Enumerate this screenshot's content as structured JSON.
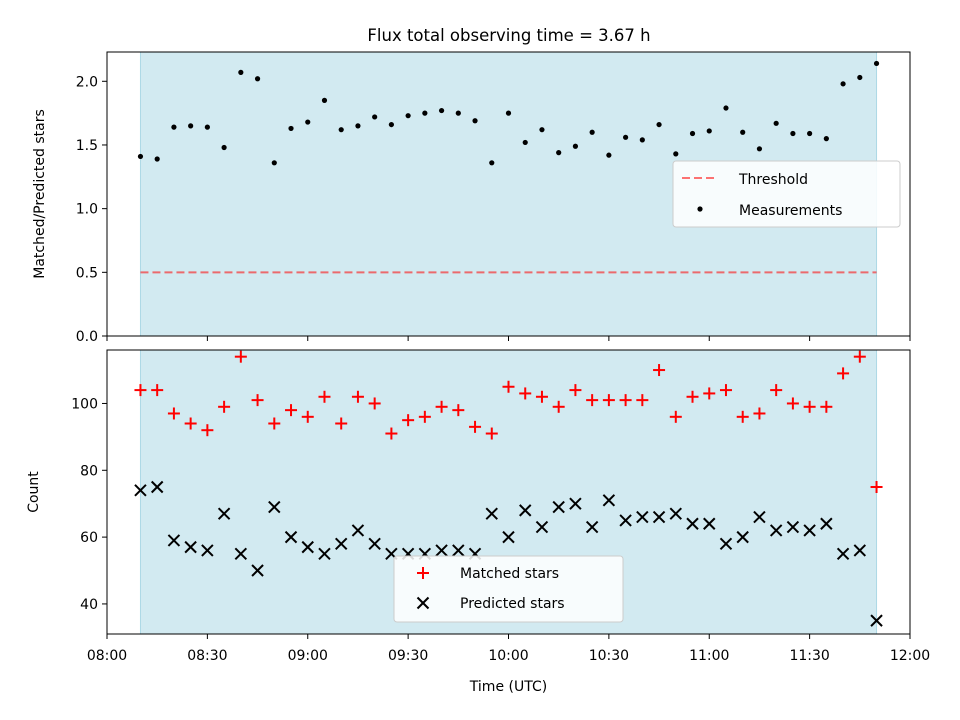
{
  "title": "Flux total observing time = 3.67 h",
  "colors": {
    "shade": "#add8e6",
    "threshold": "#ff0000",
    "matched": "#ff0000",
    "predicted": "#000000",
    "measurement": "#000000"
  },
  "chart_data": [
    {
      "type": "scatter",
      "ylabel": "Matched/Predicted stars",
      "ylim": [
        0,
        2.23
      ],
      "yticks": [
        "0.0",
        "0.5",
        "1.0",
        "1.5",
        "2.0"
      ],
      "ytick_values": [
        0,
        0.5,
        1.0,
        1.5,
        2.0
      ],
      "shaded_x_range": [
        "08:10",
        "11:50"
      ],
      "legend_position": "center-right",
      "threshold": {
        "label": "Threshold",
        "value": 0.5,
        "style": "dashed"
      },
      "series": [
        {
          "name": "Measurements",
          "marker": "dot",
          "x": [
            "08:10",
            "08:15",
            "08:20",
            "08:25",
            "08:30",
            "08:35",
            "08:40",
            "08:45",
            "08:50",
            "08:55",
            "09:00",
            "09:05",
            "09:10",
            "09:15",
            "09:20",
            "09:25",
            "09:30",
            "09:35",
            "09:40",
            "09:45",
            "09:50",
            "09:55",
            "10:00",
            "10:05",
            "10:10",
            "10:15",
            "10:20",
            "10:25",
            "10:30",
            "10:35",
            "10:40",
            "10:45",
            "10:50",
            "10:55",
            "11:00",
            "11:05",
            "11:10",
            "11:15",
            "11:20",
            "11:25",
            "11:30",
            "11:35",
            "11:40",
            "11:45",
            "11:50"
          ],
          "y": [
            1.41,
            1.39,
            1.64,
            1.65,
            1.64,
            1.48,
            2.07,
            2.02,
            1.36,
            1.63,
            1.68,
            1.85,
            1.62,
            1.65,
            1.72,
            1.66,
            1.73,
            1.75,
            1.77,
            1.75,
            1.69,
            1.36,
            1.75,
            1.52,
            1.62,
            1.44,
            1.49,
            1.6,
            1.42,
            1.56,
            1.54,
            1.66,
            1.43,
            1.59,
            1.61,
            1.79,
            1.6,
            1.47,
            1.67,
            1.59,
            1.59,
            1.55,
            1.98,
            2.03,
            2.14
          ]
        }
      ]
    },
    {
      "type": "scatter",
      "xlabel": "Time (UTC)",
      "ylabel": "Count",
      "xlim": [
        "08:00",
        "12:00"
      ],
      "ylim": [
        31,
        116
      ],
      "xticks": [
        "08:00",
        "08:30",
        "09:00",
        "09:30",
        "10:00",
        "10:30",
        "11:00",
        "11:30",
        "12:00"
      ],
      "yticks": [
        "40",
        "60",
        "80",
        "100"
      ],
      "ytick_values": [
        40,
        60,
        80,
        100
      ],
      "shaded_x_range": [
        "08:10",
        "11:50"
      ],
      "legend_position": "lower-center",
      "series": [
        {
          "name": "Matched stars",
          "marker": "plus",
          "x": [
            "08:10",
            "08:15",
            "08:20",
            "08:25",
            "08:30",
            "08:35",
            "08:40",
            "08:45",
            "08:50",
            "08:55",
            "09:00",
            "09:05",
            "09:10",
            "09:15",
            "09:20",
            "09:25",
            "09:30",
            "09:35",
            "09:40",
            "09:45",
            "09:50",
            "09:55",
            "10:00",
            "10:05",
            "10:10",
            "10:15",
            "10:20",
            "10:25",
            "10:30",
            "10:35",
            "10:40",
            "10:45",
            "10:50",
            "10:55",
            "11:00",
            "11:05",
            "11:10",
            "11:15",
            "11:20",
            "11:25",
            "11:30",
            "11:35",
            "11:40",
            "11:45",
            "11:50"
          ],
          "y": [
            104,
            104,
            97,
            94,
            92,
            99,
            114,
            101,
            94,
            98,
            96,
            102,
            94,
            102,
            100,
            91,
            95,
            96,
            99,
            98,
            93,
            91,
            105,
            103,
            102,
            99,
            104,
            101,
            101,
            101,
            101,
            110,
            96,
            102,
            103,
            104,
            96,
            97,
            104,
            100,
            99,
            99,
            109,
            114,
            75
          ]
        },
        {
          "name": "Predicted stars",
          "marker": "x",
          "x": [
            "08:10",
            "08:15",
            "08:20",
            "08:25",
            "08:30",
            "08:35",
            "08:40",
            "08:45",
            "08:50",
            "08:55",
            "09:00",
            "09:05",
            "09:10",
            "09:15",
            "09:20",
            "09:25",
            "09:30",
            "09:35",
            "09:40",
            "09:45",
            "09:50",
            "09:55",
            "10:00",
            "10:05",
            "10:10",
            "10:15",
            "10:20",
            "10:25",
            "10:30",
            "10:35",
            "10:40",
            "10:45",
            "10:50",
            "10:55",
            "11:00",
            "11:05",
            "11:10",
            "11:15",
            "11:20",
            "11:25",
            "11:30",
            "11:35",
            "11:40",
            "11:45",
            "11:50"
          ],
          "y": [
            74,
            75,
            59,
            57,
            56,
            67,
            55,
            50,
            69,
            60,
            57,
            55,
            58,
            62,
            58,
            55,
            55,
            55,
            56,
            56,
            55,
            67,
            60,
            68,
            63,
            69,
            70,
            63,
            71,
            65,
            66,
            66,
            67,
            64,
            64,
            58,
            60,
            66,
            62,
            63,
            62,
            64,
            55,
            56,
            35
          ]
        }
      ]
    }
  ]
}
